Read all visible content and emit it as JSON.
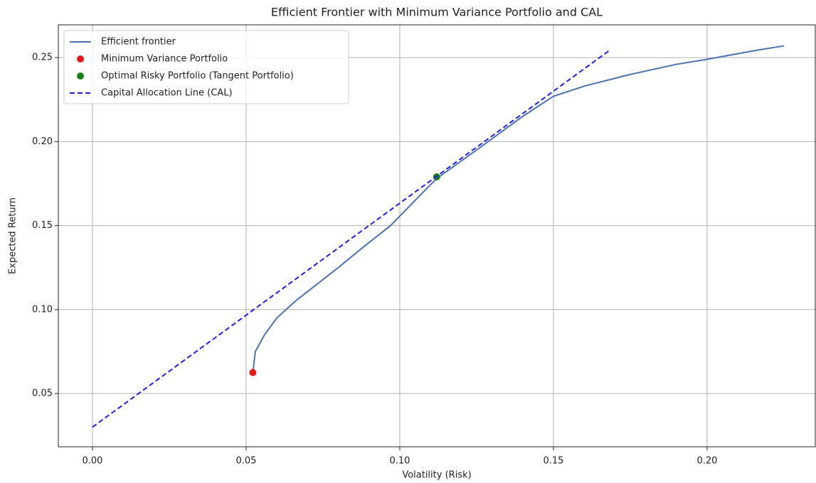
{
  "chart_data": {
    "type": "line",
    "title": "Efficient Frontier with Minimum Variance Portfolio and CAL",
    "x_label": "Volatility (Risk)",
    "y_label": "Expected Return",
    "xlim": [
      -0.0111,
      0.2352
    ],
    "ylim": [
      0.0183,
      0.2695
    ],
    "xticks": [
      {
        "value": 0,
        "label": "0.00"
      },
      {
        "value": 0.05,
        "label": "0.05"
      },
      {
        "value": 0.1,
        "label": "0.10"
      },
      {
        "value": 0.15,
        "label": "0.15"
      },
      {
        "value": 0.2,
        "label": "0.20"
      }
    ],
    "yticks": [
      {
        "value": 0.05,
        "label": "0.05"
      },
      {
        "value": 0.1,
        "label": "0.10"
      },
      {
        "value": 0.15,
        "label": "0.15"
      },
      {
        "value": 0.2,
        "label": "0.20"
      },
      {
        "value": 0.25,
        "label": "0.25"
      }
    ],
    "grid": true,
    "legend": "upper left",
    "series": [
      {
        "name": "Efficient frontier",
        "type": "line",
        "color": "#4c72b0",
        "linestyle": "solid",
        "x": [
          0.0522,
          0.053,
          0.056,
          0.06,
          0.066,
          0.073,
          0.08,
          0.088,
          0.097,
          0.105,
          0.112,
          0.125,
          0.14,
          0.15,
          0.16,
          0.175,
          0.19,
          0.2,
          0.215,
          0.225
        ],
        "values": [
          0.0625,
          0.075,
          0.085,
          0.095,
          0.105,
          0.115,
          0.125,
          0.137,
          0.15,
          0.165,
          0.178,
          0.195,
          0.215,
          0.227,
          0.233,
          0.24,
          0.246,
          0.249,
          0.254,
          0.257
        ]
      },
      {
        "name": "Minimum Variance Portfolio",
        "type": "scatter",
        "color": "#e31a1c",
        "x": [
          0.0522
        ],
        "values": [
          0.0625
        ]
      },
      {
        "name": "Optimal Risky Portfolio (Tangent Portfolio)",
        "type": "scatter",
        "color": "#1a7f1a",
        "x": [
          0.112
        ],
        "values": [
          0.179
        ]
      },
      {
        "name": "Capital Allocation Line (CAL)",
        "type": "line",
        "color": "#1f1fe6",
        "linestyle": "dashed",
        "x": [
          0,
          0.168
        ],
        "values": [
          0.03,
          0.254
        ]
      }
    ]
  }
}
